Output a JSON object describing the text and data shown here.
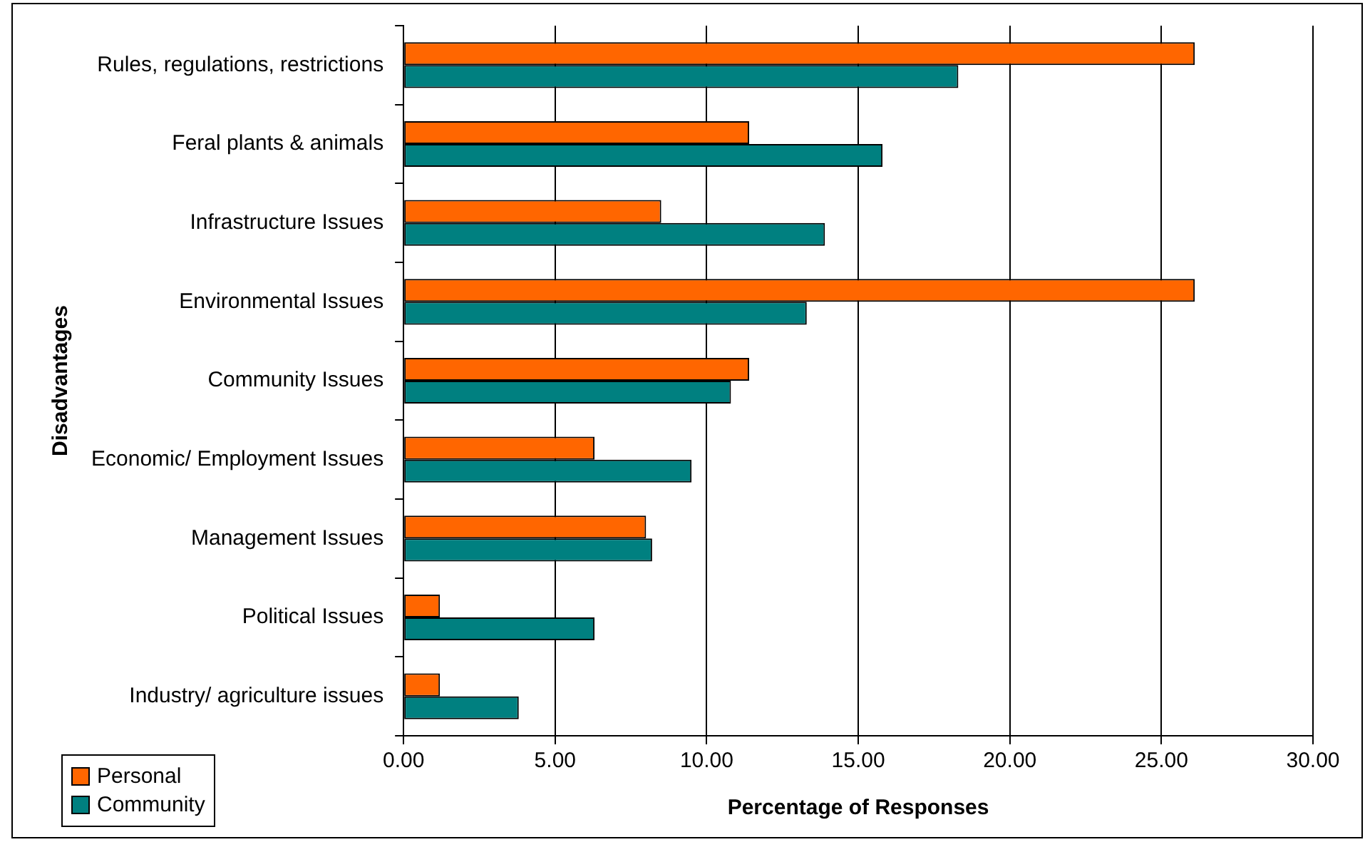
{
  "chart_data": {
    "type": "bar",
    "orientation": "horizontal",
    "xlabel": "Percentage of Responses",
    "ylabel": "Disadvantages",
    "categories": [
      "Rules, regulations, restrictions",
      "Feral plants & animals",
      "Infrastructure Issues",
      "Environmental Issues",
      "Community Issues",
      "Economic/ Employment Issues",
      "Management Issues",
      "Political Issues",
      "Industry/ agriculture issues"
    ],
    "series": [
      {
        "name": "Personal",
        "color": "#ff6600",
        "values": [
          26.1,
          11.4,
          8.5,
          26.1,
          11.4,
          6.3,
          8.0,
          1.2,
          1.2
        ]
      },
      {
        "name": "Community",
        "color": "#008080",
        "values": [
          18.3,
          15.8,
          13.9,
          13.3,
          10.8,
          9.5,
          8.2,
          6.3,
          3.8
        ]
      }
    ],
    "xlim": [
      0,
      30
    ],
    "xticks": [
      {
        "value": 0,
        "label": "0.00"
      },
      {
        "value": 5,
        "label": "5.00"
      },
      {
        "value": 10,
        "label": "10.00"
      },
      {
        "value": 15,
        "label": "15.00"
      },
      {
        "value": 20,
        "label": "20.00"
      },
      {
        "value": 25,
        "label": "25.00"
      },
      {
        "value": 30,
        "label": "30.00"
      }
    ],
    "grid": "x",
    "legend": "bottom left"
  }
}
